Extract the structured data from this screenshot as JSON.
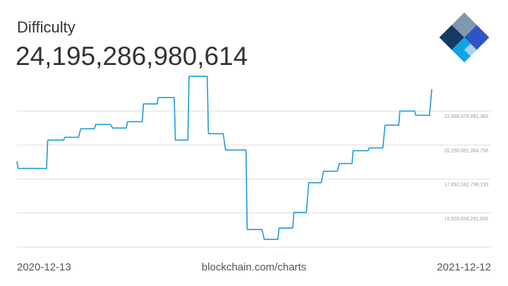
{
  "chart_data": {
    "type": "line",
    "title": "Difficulty",
    "headline": "24,195,286,980,614",
    "source": "blockchain.com/charts",
    "x": [
      "2020-12-13",
      "2020-12-14",
      "2021-01-08",
      "2021-01-09",
      "2021-01-23",
      "2021-01-24",
      "2021-02-05",
      "2021-02-07",
      "2021-02-19",
      "2021-02-20",
      "2021-03-05",
      "2021-03-07",
      "2021-03-19",
      "2021-03-20",
      "2021-04-02",
      "2021-04-03",
      "2021-04-15",
      "2021-04-16",
      "2021-04-30",
      "2021-05-01",
      "2021-05-12",
      "2021-05-13",
      "2021-05-29",
      "2021-05-30",
      "2021-06-12",
      "2021-06-14",
      "2021-07-02",
      "2021-07-03",
      "2021-07-16",
      "2021-07-18",
      "2021-07-30",
      "2021-07-31",
      "2021-08-12",
      "2021-08-13",
      "2021-08-24",
      "2021-08-26",
      "2021-09-06",
      "2021-09-08",
      "2021-09-20",
      "2021-09-22",
      "2021-10-03",
      "2021-10-04",
      "2021-10-17",
      "2021-10-18",
      "2021-10-30",
      "2021-11-01",
      "2021-11-13",
      "2021-11-14",
      "2021-11-27",
      "2021-11-28",
      "2021-12-10",
      "2021-12-12"
    ],
    "series": [
      {
        "name": "Difficulty",
        "color": "#1f9ad6",
        "values": [
          19136000000000,
          18639000000000,
          18639000000000,
          20629000000000,
          20629000000000,
          20828000000000,
          20828000000000,
          21425000000000,
          21425000000000,
          21724000000000,
          21724000000000,
          21475000000000,
          21475000000000,
          21923000000000,
          21923000000000,
          23167000000000,
          23167000000000,
          23615000000000,
          23615000000000,
          20629000000000,
          20629000000000,
          25108000000000,
          25108000000000,
          21077000000000,
          21077000000000,
          19932000000000,
          19932000000000,
          14359000000000,
          14359000000000,
          13662000000000,
          13662000000000,
          14458000000000,
          14458000000000,
          15553000000000,
          15553000000000,
          17643000000000,
          17643000000000,
          18439000000000,
          18439000000000,
          18987000000000,
          18987000000000,
          19882000000000,
          19882000000000,
          20081000000000,
          20081000000000,
          21674000000000,
          21674000000000,
          22669000000000,
          22669000000000,
          22371000000000,
          22371000000000,
          24195286980614
        ]
      }
    ],
    "xlim": [
      "2020-12-13",
      "2021-12-12"
    ],
    "xticks": [
      "2020-12-13",
      "2021-12-12"
    ],
    "ylim": [
      13115309000000,
      25505743000000
    ],
    "yticks": [
      {
        "value": 15503826201503,
        "label": "15,503,826,201,503"
      },
      {
        "value": 17892342798130,
        "label": "17,892,342,798,130"
      },
      {
        "value": 20280861394756,
        "label": "20,280,861,394,756"
      },
      {
        "value": 22669378991383,
        "label": "22,669,378,991,383"
      }
    ],
    "grid": true
  }
}
